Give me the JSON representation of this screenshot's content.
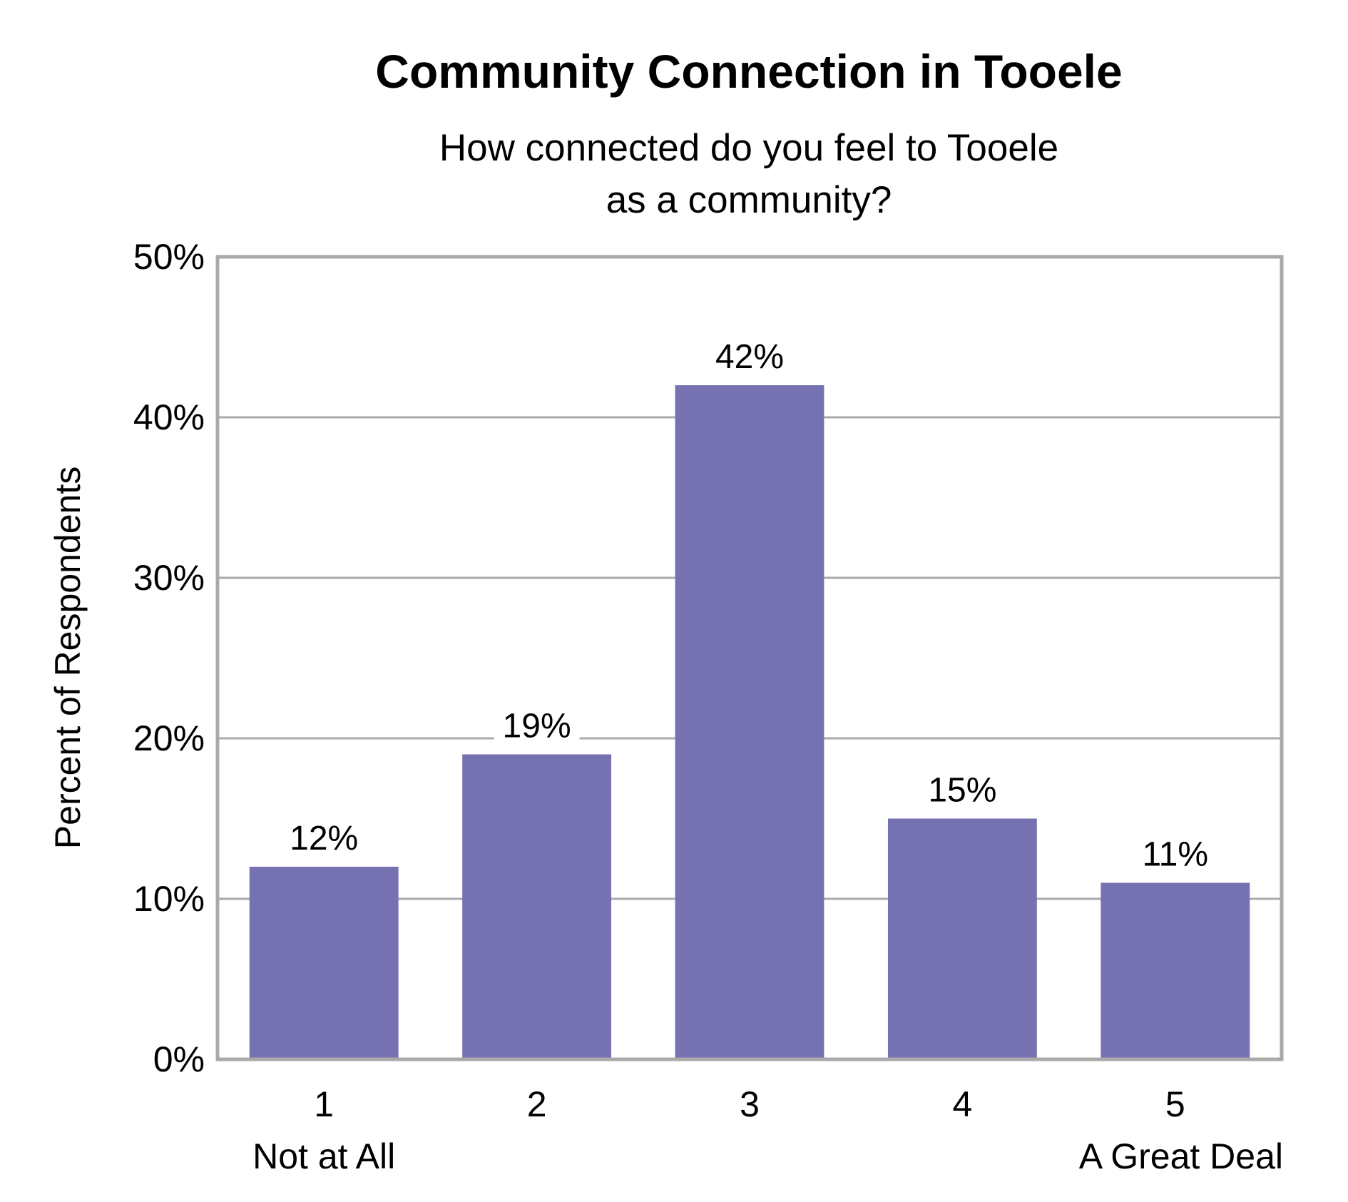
{
  "chart_data": {
    "type": "bar",
    "title": "Community Connection in Tooele",
    "subtitle_lines": [
      "How connected do you feel to Tooele",
      "as a community?"
    ],
    "ylabel": "Percent of Respondents",
    "xlabel": "",
    "categories": [
      "1",
      "2",
      "3",
      "4",
      "5"
    ],
    "category_sublabels": [
      "Not at All",
      "",
      "",
      "",
      "A Great Deal"
    ],
    "values": [
      12,
      19,
      42,
      15,
      11
    ],
    "data_labels": [
      "12%",
      "19%",
      "42%",
      "15%",
      "11%"
    ],
    "ylim": [
      0,
      50
    ],
    "yticks": [
      0,
      10,
      20,
      30,
      40,
      50
    ],
    "ytick_labels": [
      "0%",
      "10%",
      "20%",
      "30%",
      "40%",
      "50%"
    ],
    "grid": true,
    "legend": "none",
    "bar_color": "#7672b2",
    "frame_color": "#aaaaaa"
  }
}
